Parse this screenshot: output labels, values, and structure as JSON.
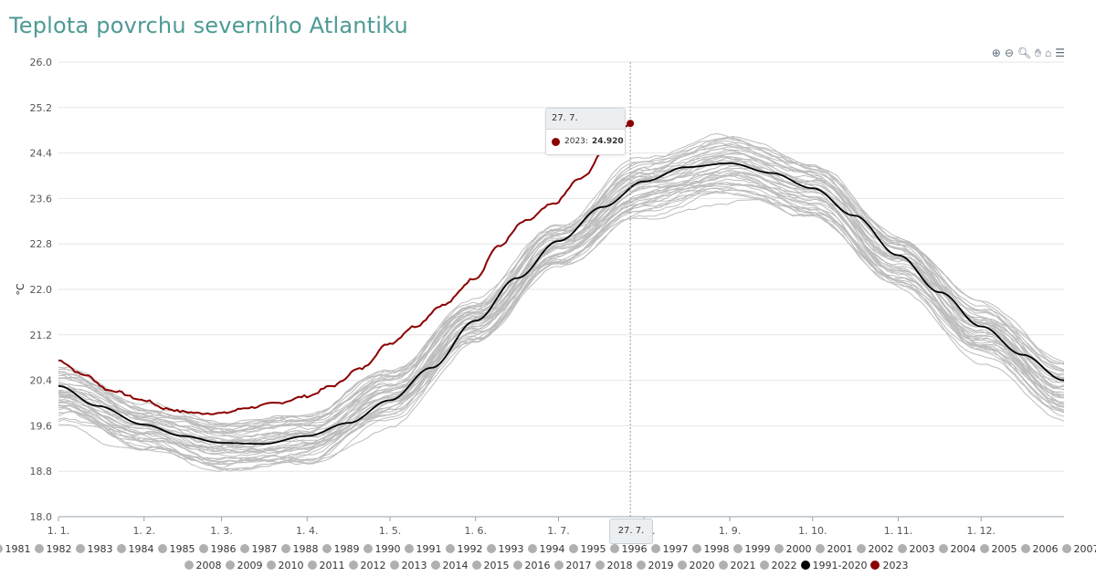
{
  "page_title": "Teplota povrchu severního Atlantiku",
  "toolbar": {
    "zoom_in_icon": "zoom-in-icon",
    "zoom_out_icon": "zoom-out-icon",
    "selection_zoom_icon": "magnifier-icon",
    "pan_icon": "hand-icon",
    "reset_icon": "home-icon",
    "menu_icon": "menu-icon"
  },
  "tooltip": {
    "date": "27. 7.",
    "series": "2023:",
    "value": "24.920"
  },
  "crosshair_label": "27. 7.",
  "chart_data": {
    "type": "line",
    "title": "Teplota povrchu severního Atlantiku",
    "ylabel": "°C",
    "xlabel": "",
    "ylim": [
      18.0,
      26.0
    ],
    "yticks": [
      "18.0",
      "18.8",
      "19.6",
      "20.4",
      "21.2",
      "22.0",
      "22.8",
      "23.6",
      "24.4",
      "25.2",
      "26.0"
    ],
    "xticks": [
      "1. 1.",
      "1. 2.",
      "1. 3.",
      "1. 4.",
      "1. 5.",
      "1. 6.",
      "1. 7.",
      "1. 8.",
      "1. 9.",
      "1. 10.",
      "1. 11.",
      "1. 12."
    ],
    "xtick_days": [
      1,
      32,
      60,
      91,
      121,
      152,
      182,
      213,
      244,
      274,
      305,
      335
    ],
    "grid": true,
    "crosshair_day": 208,
    "years": [
      "1981",
      "1982",
      "1983",
      "1984",
      "1985",
      "1986",
      "1987",
      "1988",
      "1989",
      "1990",
      "1991",
      "1992",
      "1993",
      "1994",
      "1995",
      "1996",
      "1997",
      "1998",
      "1999",
      "2000",
      "2001",
      "2002",
      "2003",
      "2004",
      "2005",
      "2006",
      "2007",
      "2008",
      "2009",
      "2010",
      "2011",
      "2012",
      "2013",
      "2014",
      "2015",
      "2016",
      "2017",
      "2018",
      "2019",
      "2020",
      "2021",
      "2022"
    ],
    "mean_series": {
      "name": "1991-2020",
      "color": "#000000",
      "days": [
        1,
        15,
        32,
        46,
        60,
        75,
        91,
        106,
        121,
        136,
        152,
        167,
        182,
        198,
        213,
        228,
        244,
        259,
        274,
        289,
        305,
        320,
        335,
        350,
        365
      ],
      "values": [
        20.3,
        19.95,
        19.62,
        19.42,
        19.3,
        19.28,
        19.42,
        19.65,
        20.05,
        20.62,
        21.45,
        22.2,
        22.85,
        23.45,
        23.9,
        24.15,
        24.22,
        24.05,
        23.78,
        23.3,
        22.6,
        21.95,
        21.35,
        20.85,
        20.4
      ]
    },
    "highlight_series": {
      "name": "2023",
      "color": "#8b0000",
      "days": [
        1,
        10,
        20,
        32,
        40,
        46,
        52,
        60,
        70,
        80,
        91,
        100,
        110,
        121,
        130,
        140,
        152,
        160,
        170,
        180,
        190,
        200,
        208
      ],
      "values": [
        20.75,
        20.5,
        20.22,
        20.05,
        19.9,
        19.85,
        19.82,
        19.82,
        19.92,
        20.0,
        20.12,
        20.3,
        20.6,
        21.05,
        21.35,
        21.72,
        22.2,
        22.75,
        23.2,
        23.5,
        23.95,
        24.5,
        24.92
      ]
    },
    "historic_envelope": {
      "days": [
        1,
        32,
        60,
        91,
        121,
        152,
        182,
        213,
        244,
        274,
        305,
        335,
        365
      ],
      "min": [
        19.55,
        19.05,
        18.75,
        18.85,
        19.55,
        20.95,
        22.35,
        23.2,
        23.45,
        23.15,
        21.95,
        20.7,
        19.55
      ],
      "max": [
        20.75,
        20.05,
        19.8,
        19.95,
        20.7,
        21.9,
        23.25,
        24.45,
        24.85,
        24.35,
        23.1,
        21.85,
        20.85
      ]
    }
  },
  "legend": {
    "row1": [
      "1981",
      "1982",
      "1983",
      "1984",
      "1985",
      "1986",
      "1987",
      "1988",
      "1989",
      "1990",
      "1991",
      "1992",
      "1993",
      "1994",
      "1995",
      "1996",
      "1997",
      "1998",
      "1999",
      "2000",
      "2001",
      "2002",
      "2003",
      "2004",
      "2005",
      "2006",
      "2007"
    ],
    "row2": [
      "2008",
      "2009",
      "2010",
      "2011",
      "2012",
      "2013",
      "2014",
      "2015",
      "2016",
      "2017",
      "2018",
      "2019",
      "2020",
      "2021",
      "2022"
    ],
    "mean_label": "1991-2020",
    "mean_color": "#000000",
    "highlight_label": "2023",
    "highlight_color": "#8b0000",
    "year_color": "#b0b0b0"
  }
}
